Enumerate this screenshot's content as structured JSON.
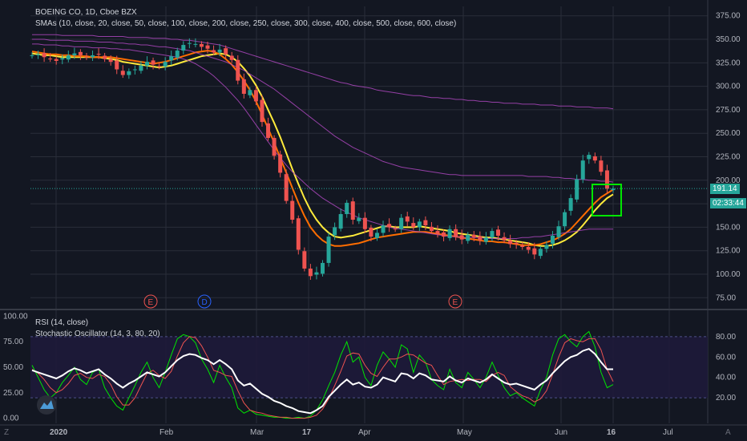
{
  "header": {
    "symbol": "BOEING CO, 1D, Cboe BZX",
    "studies": "SMAs (10, close, 20, close, 50, close, 100, close, 200, close, 250, close, 300, close, 400, close, 500, close, 600, close)"
  },
  "oscillator": {
    "rsi_label": "RSI (14, close)",
    "stoch_label": "Stochastic Oscillator (14, 3, 80, 20)"
  },
  "price_badges": {
    "last": "191.14",
    "countdown": "02:33:44"
  },
  "colors": {
    "background": "#131722",
    "up": "#26a69a",
    "down": "#ef5350",
    "sma_fast": "#ffeb3b",
    "sma_mid": "#ff6d00",
    "sma_slow": "#ab47bc",
    "highlight_box": "#00e600",
    "rsi": "#ffffff",
    "stoch_k": "#00e600",
    "stoch_d": "#ef5350"
  },
  "chart_data": [
    {
      "type": "candlestick",
      "title": "BOEING CO, 1D, Cboe BZX",
      "y_ticks": [
        "375.00",
        "350.00",
        "325.00",
        "300.00",
        "275.00",
        "250.00",
        "225.00",
        "200.00",
        "175.00",
        "150.00",
        "125.00",
        "100.00",
        "75.00"
      ],
      "ylim": [
        65,
        385
      ],
      "x_ticks": [
        "2020",
        "Feb",
        "Mar",
        "17",
        "Apr",
        "May",
        "Jun",
        "16",
        "Jul"
      ],
      "events": [
        {
          "label": "E",
          "date": "Jan 29",
          "color": "#ef5350"
        },
        {
          "label": "D",
          "date": "Feb 12",
          "color": "#2962ff"
        },
        {
          "label": "E",
          "date": "Apr 29",
          "color": "#ef5350"
        }
      ],
      "close": [
        333,
        334,
        331,
        329,
        327,
        330,
        333,
        335,
        333,
        331,
        333,
        334,
        329,
        326,
        318,
        312,
        316,
        318,
        322,
        326,
        323,
        321,
        326,
        332,
        338,
        344,
        346,
        345,
        342,
        340,
        336,
        339,
        334,
        328,
        306,
        292,
        296,
        284,
        262,
        245,
        226,
        208,
        178,
        158,
        126,
        106,
        98,
        102,
        112,
        140,
        150,
        164,
        176,
        158,
        160,
        148,
        140,
        144,
        152,
        150,
        148,
        160,
        156,
        150,
        156,
        152,
        146,
        143,
        140,
        148,
        140,
        137,
        142,
        139,
        136,
        139,
        146,
        141,
        136,
        132,
        132,
        129,
        126,
        121,
        127,
        131,
        141,
        151,
        166,
        181,
        201,
        221,
        227,
        221,
        209,
        191,
        191
      ],
      "open_offset": 5,
      "sma_lines": [
        {
          "name": "SMA 10",
          "color": "#ffeb3b",
          "values": [
            335,
            334,
            333,
            333,
            332,
            331,
            331,
            331,
            331,
            331,
            331,
            331,
            330,
            329,
            328,
            326,
            325,
            324,
            323,
            322,
            321,
            320,
            321,
            322,
            324,
            326,
            328,
            330,
            332,
            333,
            334,
            335,
            334,
            331,
            326,
            319,
            311,
            301,
            289,
            275,
            261,
            246,
            229,
            212,
            196,
            181,
            168,
            158,
            150,
            144,
            140,
            139,
            140,
            141,
            143,
            145,
            147,
            149,
            151,
            151,
            150,
            150,
            150,
            150,
            151,
            150,
            149,
            148,
            147,
            146,
            144,
            143,
            142,
            141,
            140,
            139,
            139,
            138,
            137,
            136,
            135,
            134,
            133,
            131,
            130,
            130,
            131,
            133,
            136,
            140,
            145,
            152,
            160,
            168,
            175,
            181,
            185
          ]
        },
        {
          "name": "SMA 20",
          "color": "#ff6d00",
          "values": [
            337,
            336,
            335,
            334,
            334,
            333,
            333,
            332,
            332,
            332,
            331,
            331,
            331,
            331,
            330,
            329,
            328,
            327,
            326,
            325,
            324,
            325,
            326,
            328,
            330,
            332,
            334,
            336,
            337,
            338,
            337,
            334,
            329,
            323,
            315,
            306,
            296,
            284,
            270,
            255,
            240,
            224,
            208,
            192,
            176,
            162,
            150,
            142,
            136,
            132,
            130,
            130,
            131,
            132,
            133,
            135,
            137,
            139,
            140,
            141,
            142,
            143,
            144,
            145,
            145,
            145,
            144,
            143,
            142,
            141,
            140,
            139,
            138,
            137,
            136,
            135,
            135,
            134,
            134,
            133,
            132,
            131,
            131,
            131,
            132,
            134,
            136,
            139,
            143,
            148,
            155,
            162,
            169,
            176,
            182,
            186,
            190
          ]
        },
        {
          "name": "SMA 50",
          "color": "#ab47bc",
          "values": [
            345,
            345,
            344,
            344,
            344,
            343,
            343,
            342,
            342,
            342,
            341,
            341,
            341,
            340,
            340,
            339,
            339,
            338,
            337,
            336,
            335,
            334,
            333,
            332,
            331,
            329,
            327,
            324,
            320,
            316,
            311,
            305,
            299,
            292,
            285,
            277,
            268,
            259,
            250,
            241,
            232,
            224,
            216,
            209,
            203,
            197,
            191,
            186,
            181,
            177,
            173,
            169,
            166,
            163,
            160,
            158,
            156,
            154,
            152,
            150,
            149,
            148,
            147,
            146,
            145,
            144,
            143,
            142,
            141,
            140,
            140,
            139,
            139,
            139,
            139,
            138,
            138,
            138,
            138,
            138,
            138,
            139,
            139,
            140,
            140,
            141,
            142,
            143,
            144,
            145,
            146,
            147,
            148,
            148,
            148,
            148,
            148
          ]
        },
        {
          "name": "SMA 100",
          "color": "#ab47bc",
          "values": [
            350,
            350,
            350,
            349,
            349,
            349,
            349,
            348,
            348,
            348,
            348,
            347,
            347,
            347,
            346,
            346,
            345,
            345,
            344,
            344,
            343,
            342,
            342,
            341,
            340,
            339,
            338,
            336,
            334,
            332,
            330,
            328,
            326,
            323,
            320,
            317,
            313,
            309,
            305,
            301,
            297,
            292,
            287,
            282,
            277,
            272,
            267,
            262,
            257,
            252,
            247,
            243,
            239,
            235,
            232,
            229,
            226,
            223,
            220,
            218,
            216,
            214,
            213,
            212,
            211,
            210,
            209,
            208,
            207,
            206,
            206,
            205,
            205,
            205,
            205,
            205,
            205,
            205,
            205,
            205,
            205,
            205,
            204,
            204,
            204,
            204,
            203,
            203,
            202,
            202,
            201,
            201,
            200,
            200,
            199,
            199,
            198
          ]
        },
        {
          "name": "SMA 200",
          "color": "#ab47bc",
          "values": [
            355,
            355,
            355,
            355,
            355,
            354,
            354,
            354,
            354,
            354,
            354,
            353,
            353,
            353,
            353,
            353,
            352,
            352,
            352,
            352,
            351,
            351,
            351,
            350,
            350,
            349,
            349,
            348,
            347,
            346,
            345,
            344,
            342,
            340,
            338,
            336,
            334,
            332,
            330,
            328,
            326,
            324,
            322,
            320,
            318,
            316,
            314,
            312,
            310,
            308,
            306,
            304,
            303,
            301,
            300,
            299,
            298,
            296,
            295,
            294,
            293,
            292,
            291,
            290,
            290,
            289,
            288,
            288,
            287,
            287,
            286,
            286,
            285,
            285,
            284,
            284,
            283,
            283,
            282,
            282,
            282,
            281,
            281,
            281,
            280,
            280,
            280,
            279,
            279,
            279,
            278,
            278,
            278,
            277,
            277,
            277,
            276
          ]
        }
      ],
      "last_price_line": 191.14
    },
    {
      "type": "line",
      "title": "RSI (14, close)",
      "left_ticks": [
        "100.00",
        "75.00",
        "50.00",
        "25.00",
        "0.00"
      ],
      "right_ticks": [
        "80.00",
        "60.00",
        "40.00",
        "20.00"
      ],
      "ylim": [
        -5,
        105
      ],
      "series": [
        {
          "name": "RSI (14, close)",
          "color": "#ffffff",
          "values": [
            47,
            45,
            43,
            41,
            39,
            42,
            46,
            49,
            47,
            44,
            46,
            48,
            43,
            39,
            34,
            30,
            34,
            37,
            41,
            45,
            43,
            41,
            45,
            51,
            57,
            61,
            63,
            62,
            59,
            57,
            53,
            57,
            53,
            48,
            37,
            32,
            34,
            29,
            24,
            21,
            17,
            15,
            12,
            10,
            7,
            6,
            5,
            8,
            12,
            21,
            27,
            33,
            38,
            33,
            35,
            31,
            30,
            33,
            40,
            38,
            36,
            44,
            43,
            39,
            44,
            42,
            38,
            37,
            36,
            41,
            37,
            35,
            39,
            37,
            35,
            38,
            43,
            39,
            35,
            33,
            34,
            32,
            30,
            28,
            33,
            37,
            44,
            50,
            56,
            60,
            62,
            66,
            68,
            63,
            55,
            48,
            48
          ]
        },
        {
          "name": "Stoch %K",
          "color": "#00e600",
          "values": [
            52,
            40,
            28,
            20,
            25,
            35,
            42,
            50,
            38,
            33,
            45,
            48,
            30,
            20,
            12,
            8,
            20,
            32,
            45,
            55,
            40,
            30,
            45,
            62,
            78,
            82,
            80,
            74,
            58,
            48,
            35,
            52,
            40,
            30,
            10,
            5,
            8,
            4,
            3,
            2,
            1,
            1,
            0,
            0,
            1,
            0,
            2,
            8,
            18,
            32,
            45,
            62,
            75,
            55,
            60,
            40,
            32,
            52,
            65,
            58,
            50,
            72,
            68,
            45,
            62,
            55,
            38,
            32,
            28,
            48,
            35,
            30,
            45,
            38,
            30,
            40,
            55,
            42,
            30,
            22,
            25,
            20,
            16,
            12,
            28,
            40,
            62,
            78,
            82,
            75,
            70,
            80,
            85,
            70,
            45,
            30,
            33
          ]
        },
        {
          "name": "Stoch %D",
          "color": "#ef5350",
          "values": [
            48,
            44,
            38,
            30,
            25,
            28,
            34,
            42,
            44,
            40,
            39,
            43,
            41,
            33,
            21,
            13,
            13,
            20,
            32,
            44,
            47,
            42,
            39,
            46,
            61,
            74,
            80,
            79,
            71,
            60,
            47,
            45,
            42,
            41,
            27,
            15,
            8,
            6,
            5,
            3,
            2,
            1,
            1,
            0,
            0,
            0,
            1,
            3,
            9,
            19,
            32,
            46,
            61,
            64,
            63,
            52,
            44,
            41,
            50,
            58,
            58,
            60,
            63,
            62,
            58,
            54,
            52,
            42,
            33,
            36,
            37,
            38,
            37,
            38,
            38,
            36,
            42,
            45,
            42,
            31,
            26,
            22,
            20,
            16,
            19,
            27,
            43,
            60,
            74,
            78,
            76,
            75,
            78,
            78,
            67,
            48,
            36
          ]
        }
      ],
      "bands": {
        "upper": 80,
        "lower": 20
      }
    }
  ]
}
